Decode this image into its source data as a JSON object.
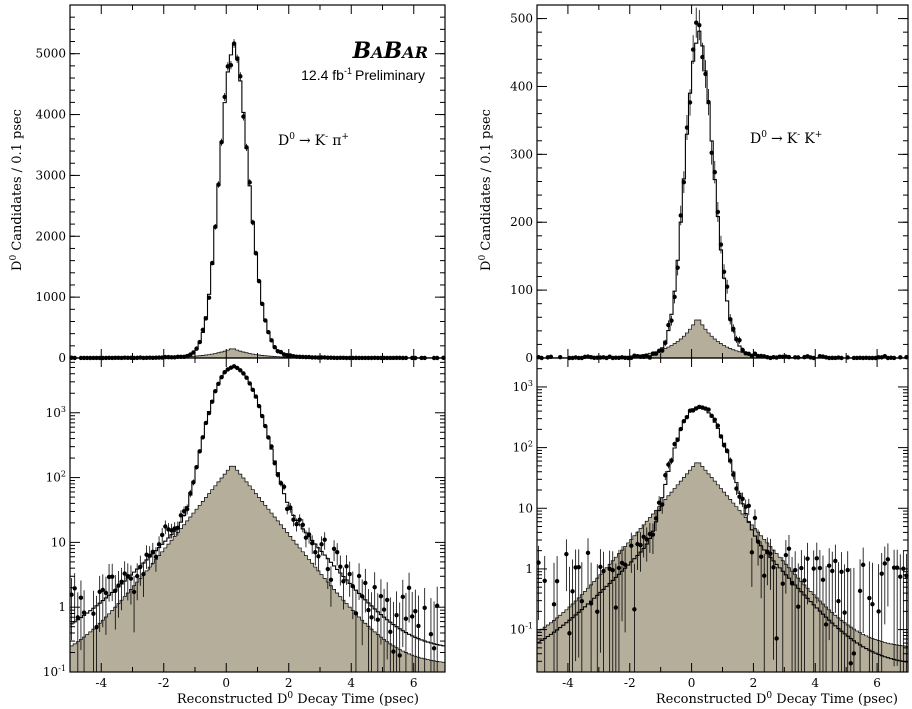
{
  "experiment": {
    "logo_lead_1": "B",
    "logo_small_1": "A",
    "logo_lead_2": "B",
    "logo_small_2": "AR",
    "luminosity_value": "12.4 fb",
    "luminosity_exp": "-1",
    "luminosity_suffix": "Preliminary"
  },
  "shared_xlabel": {
    "prefix": "Reconstructed D",
    "sup": "0",
    "suffix": " Decay Time (psec)"
  },
  "colors": {
    "background_fill": "#b5ae9b",
    "points": "#000000",
    "lines": "#000000"
  },
  "chart_data": [
    {
      "type": "line",
      "panel": "left-top",
      "channel": {
        "base": "D",
        "sup0": "0",
        "arrow": "→",
        "p1": "K",
        "p1sup": "-",
        "p2": "π",
        "p2sup": "+"
      },
      "ylabel": {
        "base": "D",
        "sup": "0",
        "rest": " Candidates / 0.1 psec"
      },
      "xlim": [
        -5,
        7
      ],
      "ylim": [
        0,
        5800
      ],
      "yscale": "linear",
      "yticks": [
        0,
        1000,
        2000,
        3000,
        4000,
        5000
      ],
      "ytick_labels": [
        "0",
        "1000",
        "2000",
        "3000",
        "4000",
        "5000"
      ],
      "peak_total": 4900,
      "peak_background": 160,
      "peak_position": 0.2,
      "series": [
        {
          "role": "total-fit",
          "values": "histogram"
        },
        {
          "role": "background",
          "values": "filled histogram"
        },
        {
          "role": "data",
          "values": "points"
        }
      ]
    },
    {
      "type": "line",
      "panel": "left-bottom",
      "xlim": [
        -5,
        7
      ],
      "ylim": [
        0.1,
        7000
      ],
      "yscale": "log",
      "yticks": [
        0.1,
        1,
        10,
        100,
        1000
      ],
      "ytick_labels": [
        [
          "10",
          "-1"
        ],
        [
          "1",
          ""
        ],
        [
          "10",
          ""
        ],
        [
          "10",
          "2"
        ],
        [
          "10",
          "3"
        ]
      ],
      "xticks": [
        -4,
        -2,
        0,
        2,
        4,
        6
      ],
      "xtick_labels": [
        "-4",
        "-2",
        "0",
        "2",
        "4",
        "6"
      ],
      "peak_total": 4900,
      "peak_background": 160,
      "peak_position": 0.2
    },
    {
      "type": "line",
      "panel": "right-top",
      "channel": {
        "base": "D",
        "sup0": "0",
        "arrow": "→",
        "p1": "K",
        "p1sup": "-",
        "p2": "K",
        "p2sup": "+"
      },
      "ylabel": {
        "base": "D",
        "sup": "0",
        "rest": " Candidates / 0.1 psec"
      },
      "xlim": [
        -5,
        7
      ],
      "ylim": [
        0,
        520
      ],
      "yscale": "linear",
      "yticks": [
        0,
        100,
        200,
        300,
        400,
        500
      ],
      "ytick_labels": [
        "0",
        "100",
        "200",
        "300",
        "400",
        "500"
      ],
      "peak_total": 450,
      "peak_background": 60,
      "peak_position": 0.2
    },
    {
      "type": "line",
      "panel": "right-bottom",
      "xlim": [
        -5,
        7
      ],
      "ylim": [
        0.02,
        3000
      ],
      "yscale": "log",
      "yticks": [
        0.1,
        1,
        10,
        100,
        1000
      ],
      "ytick_labels": [
        [
          "10",
          "-1"
        ],
        [
          "1",
          ""
        ],
        [
          "10",
          ""
        ],
        [
          "10",
          "2"
        ],
        [
          "10",
          "3"
        ]
      ],
      "xticks": [
        -4,
        -2,
        0,
        2,
        4,
        6
      ],
      "xtick_labels": [
        "-4",
        "-2",
        "0",
        "2",
        "4",
        "6"
      ],
      "peak_total": 450,
      "peak_background": 60,
      "peak_position": 0.2
    }
  ]
}
